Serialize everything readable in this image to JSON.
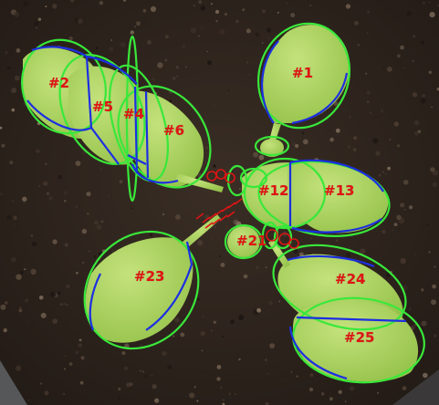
{
  "image": {
    "subject": "rosette plant seedling on soil with leaf segmentation overlay",
    "colors": {
      "soil": "#2a211b",
      "leaf": "#a9d25f",
      "ellipse_outline": "#39e83a",
      "contour_outline": "#1c2fe0",
      "label_text": "#e01414",
      "tray_edge": "#6b6f72"
    }
  },
  "leaf_labels": [
    {
      "id": "leaf-1",
      "text": "#1"
    },
    {
      "id": "leaf-2",
      "text": "#2"
    },
    {
      "id": "leaf-5",
      "text": "#5"
    },
    {
      "id": "leaf-4",
      "text": "#4"
    },
    {
      "id": "leaf-6",
      "text": "#6"
    },
    {
      "id": "leaf-12",
      "text": "#12"
    },
    {
      "id": "leaf-13",
      "text": "#13"
    },
    {
      "id": "leaf-21",
      "text": "#21"
    },
    {
      "id": "leaf-23",
      "text": "#23"
    },
    {
      "id": "leaf-24",
      "text": "#24"
    },
    {
      "id": "leaf-25",
      "text": "#25"
    }
  ]
}
